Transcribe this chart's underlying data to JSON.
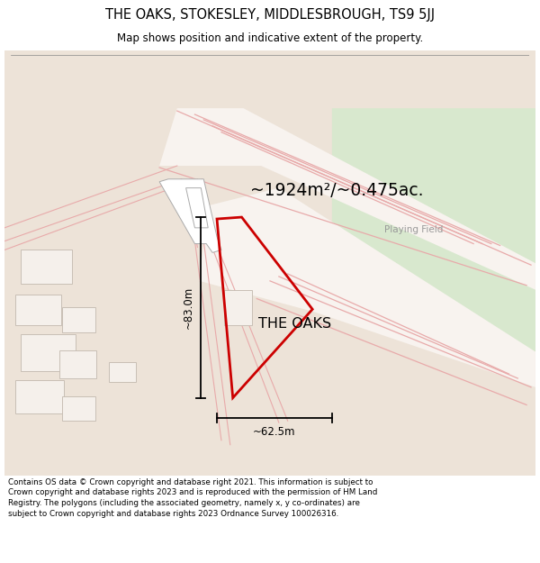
{
  "title_line1": "THE OAKS, STOKESLEY, MIDDLESBROUGH, TS9 5JJ",
  "title_line2": "Map shows position and indicative extent of the property.",
  "property_label": "THE OAKS",
  "area_text": "~1924m²/~0.475ac.",
  "width_label": "~62.5m",
  "height_label": "~83.0m",
  "playing_field_label": "Playing Field",
  "footer_text": "Contains OS data © Crown copyright and database right 2021. This information is subject to Crown copyright and database rights 2023 and is reproduced with the permission of HM Land Registry. The polygons (including the associated geometry, namely x, y co-ordinates) are subject to Crown copyright and database rights 2023 Ordnance Survey 100026316.",
  "bg_color": "#ede3d8",
  "green_area_color": "#d8e8ce",
  "road_lighter_color": "#f5ede6",
  "road_line_color": "#e8aaaa",
  "property_outline_color": "#cc0000",
  "building_fill": "#f5f0eb",
  "building_edge": "#c8bfb5",
  "white_road": "#f8f3ef",
  "gray_road": "#d8d0c8"
}
